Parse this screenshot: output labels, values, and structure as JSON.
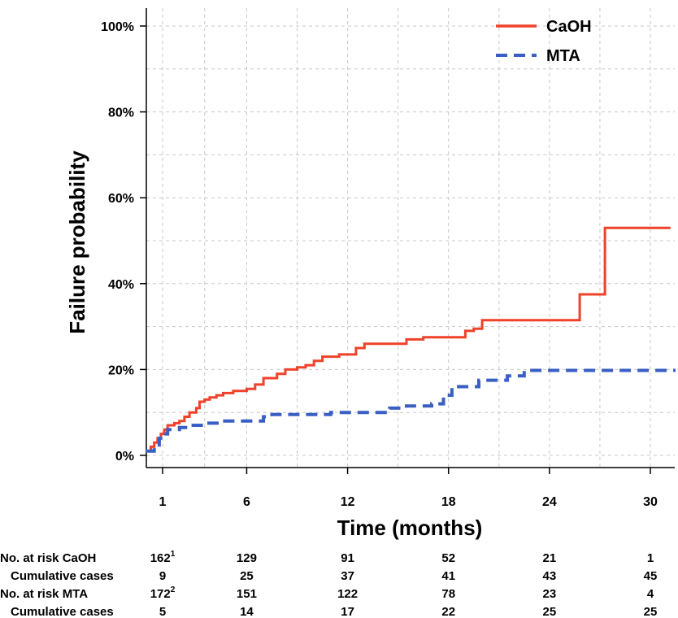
{
  "chart_data": {
    "type": "line",
    "title": "",
    "xlabel": "Time (months)",
    "ylabel": "Failure probability",
    "x_ticks": [
      1,
      6,
      12,
      18,
      24,
      30
    ],
    "y_ticks": [
      "0%",
      "20%",
      "40%",
      "60%",
      "80%",
      "100%"
    ],
    "xlim": [
      -0.2,
      31.5
    ],
    "ylim": [
      0,
      100
    ],
    "grid": true,
    "legend_position": "top-right",
    "series": [
      {
        "name": "CaOH",
        "color": "#f0412a",
        "style": "solid",
        "points": [
          [
            0,
            1
          ],
          [
            0.3,
            2
          ],
          [
            0.5,
            3
          ],
          [
            0.7,
            4
          ],
          [
            0.9,
            5
          ],
          [
            1.1,
            6
          ],
          [
            1.3,
            7
          ],
          [
            1.7,
            7.5
          ],
          [
            2.0,
            8
          ],
          [
            2.3,
            9
          ],
          [
            2.6,
            10
          ],
          [
            3.0,
            11
          ],
          [
            3.2,
            12.5
          ],
          [
            3.5,
            13
          ],
          [
            3.8,
            13.5
          ],
          [
            4.2,
            14
          ],
          [
            4.6,
            14.5
          ],
          [
            5.2,
            15
          ],
          [
            6.0,
            15.5
          ],
          [
            6.5,
            16.5
          ],
          [
            7.0,
            18
          ],
          [
            7.8,
            19
          ],
          [
            8.3,
            20
          ],
          [
            9.0,
            20.5
          ],
          [
            9.5,
            21
          ],
          [
            10.0,
            22
          ],
          [
            10.5,
            23
          ],
          [
            11.5,
            23.5
          ],
          [
            12.5,
            25
          ],
          [
            13.0,
            26
          ],
          [
            15.5,
            27
          ],
          [
            16.5,
            27.5
          ],
          [
            19.0,
            29
          ],
          [
            19.5,
            29.5
          ],
          [
            20.0,
            31.5
          ],
          [
            25.8,
            37.5
          ],
          [
            27.3,
            53
          ],
          [
            31.2,
            53
          ]
        ]
      },
      {
        "name": "MTA",
        "color": "#3a5fc4",
        "style": "dashed",
        "points": [
          [
            0,
            1
          ],
          [
            0.5,
            2
          ],
          [
            0.8,
            4
          ],
          [
            1.0,
            5
          ],
          [
            1.3,
            6
          ],
          [
            2.0,
            6.5
          ],
          [
            2.5,
            7
          ],
          [
            3.5,
            7.5
          ],
          [
            4.5,
            8
          ],
          [
            7.0,
            9
          ],
          [
            7.5,
            9.5
          ],
          [
            10.5,
            9.5
          ],
          [
            11.0,
            10
          ],
          [
            13.5,
            10
          ],
          [
            14.5,
            11
          ],
          [
            15.5,
            11.5
          ],
          [
            17.0,
            12
          ],
          [
            17.7,
            14
          ],
          [
            18.2,
            16
          ],
          [
            19.8,
            17.5
          ],
          [
            21.5,
            18.5
          ],
          [
            22.5,
            19.8
          ],
          [
            31.5,
            19.8
          ]
        ]
      }
    ]
  },
  "risk_table": {
    "rows": [
      {
        "label": "No. at risk CaOH",
        "values": [
          "162",
          "129",
          "91",
          "52",
          "21",
          "1"
        ],
        "first_sup": "1"
      },
      {
        "label": "Cumulative cases",
        "values": [
          "9",
          "25",
          "37",
          "41",
          "43",
          "45"
        ],
        "first_sup": ""
      },
      {
        "label": "No. at risk MTA",
        "values": [
          "172",
          "151",
          "122",
          "78",
          "23",
          "4"
        ],
        "first_sup": "2"
      },
      {
        "label": "Cumulative cases",
        "values": [
          "5",
          "14",
          "17",
          "22",
          "25",
          "25"
        ],
        "first_sup": ""
      }
    ]
  }
}
